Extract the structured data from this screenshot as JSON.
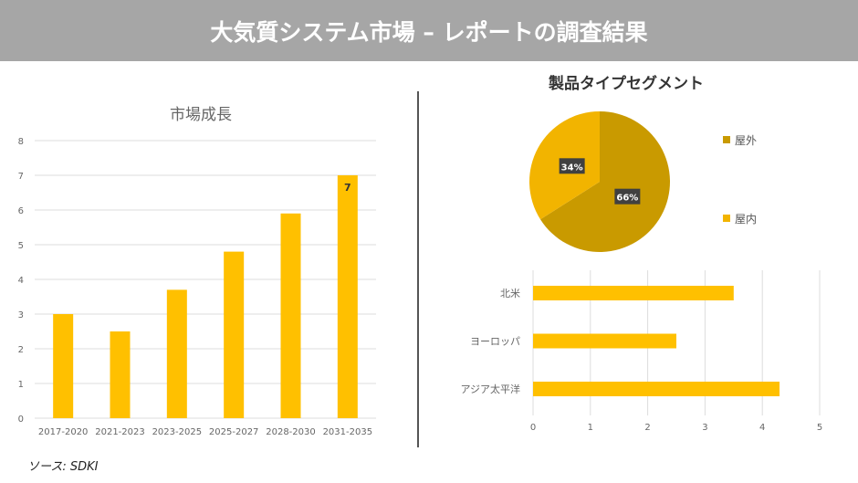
{
  "header": {
    "title": "大気質システム市場 – レポートの調査結果"
  },
  "source": "ソース: SDKI",
  "chart_data": [
    {
      "type": "bar",
      "title": "市場成長",
      "categories": [
        "2017-2020",
        "2021-2023",
        "2023-2025",
        "2025-2027",
        "2028-2030",
        "2031-2035"
      ],
      "values": [
        3,
        2.5,
        3.7,
        4.8,
        5.9,
        7
      ],
      "data_labels": {
        "2031-2035": "7"
      },
      "ylim": [
        0,
        8
      ],
      "yticks": [
        "0",
        "1",
        "2",
        "3",
        "4",
        "5",
        "6",
        "7",
        "8"
      ],
      "grid": true,
      "color": "#FFC000"
    },
    {
      "type": "pie",
      "title": "製品タイプセグメント",
      "slices": [
        {
          "name": "屋外",
          "value": 66,
          "label": "66%",
          "color": "#C99A00"
        },
        {
          "name": "屋内",
          "value": 34,
          "label": "34%",
          "color": "#F2B400"
        }
      ],
      "legend": "right"
    },
    {
      "type": "bar",
      "orientation": "horizontal",
      "categories": [
        "北米",
        "ヨーロッパ",
        "アジア太平洋"
      ],
      "values": [
        3.5,
        2.5,
        4.3
      ],
      "xlim": [
        0,
        5
      ],
      "xticks": [
        "0",
        "1",
        "2",
        "3",
        "4",
        "5"
      ],
      "grid": true,
      "color": "#FFC000"
    }
  ]
}
